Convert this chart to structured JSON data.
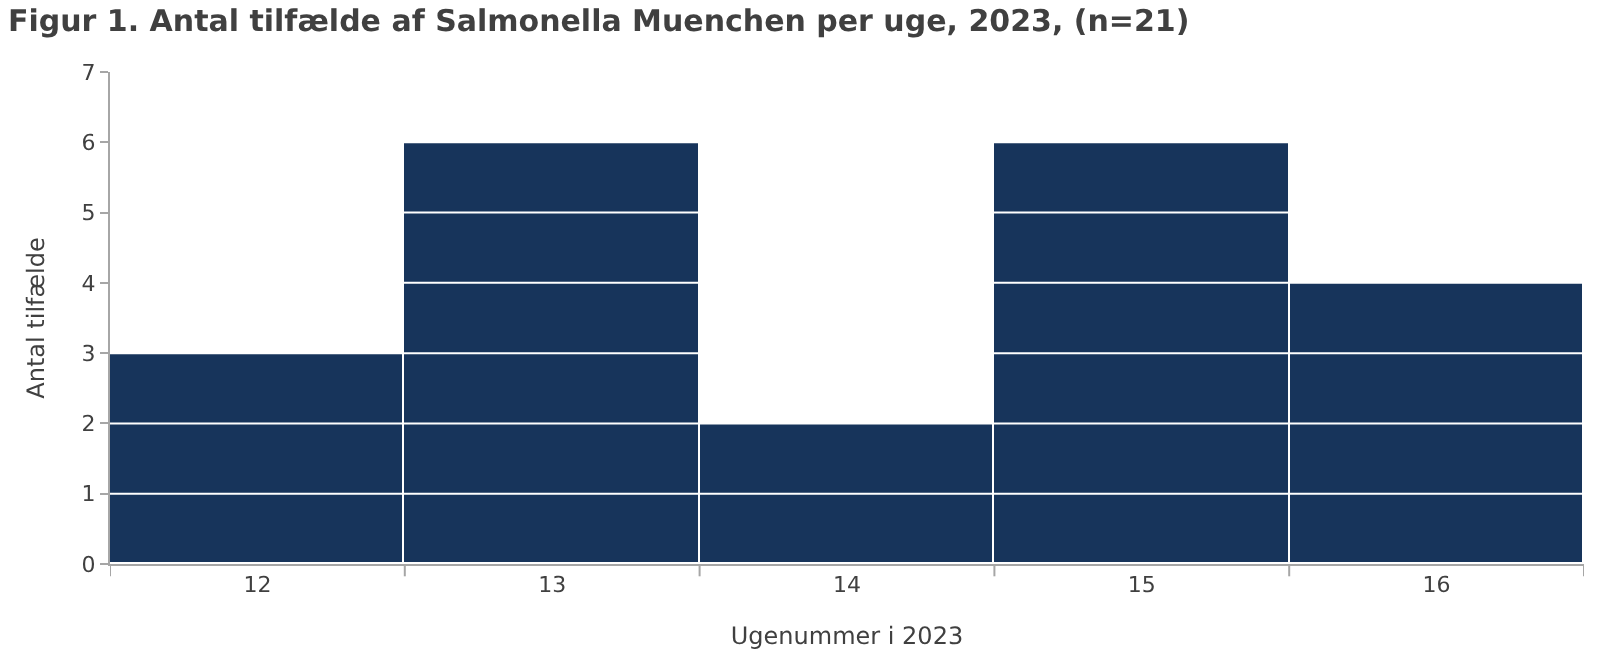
{
  "chart_data": {
    "type": "bar",
    "title": "Figur 1. Antal tilfælde af Salmonella Muenchen per uge, 2023, (n=21)",
    "xlabel": "Ugenummer i 2023",
    "ylabel": "Antal tilfælde",
    "categories": [
      "12",
      "13",
      "14",
      "15",
      "16"
    ],
    "series": [
      {
        "color": "#17345b",
        "values": [
          3,
          6,
          2,
          6,
          4
        ]
      }
    ],
    "ylim": [
      0,
      7
    ],
    "yticks": [
      0,
      1,
      2,
      3,
      4,
      5,
      6,
      7
    ],
    "grid": "y"
  }
}
